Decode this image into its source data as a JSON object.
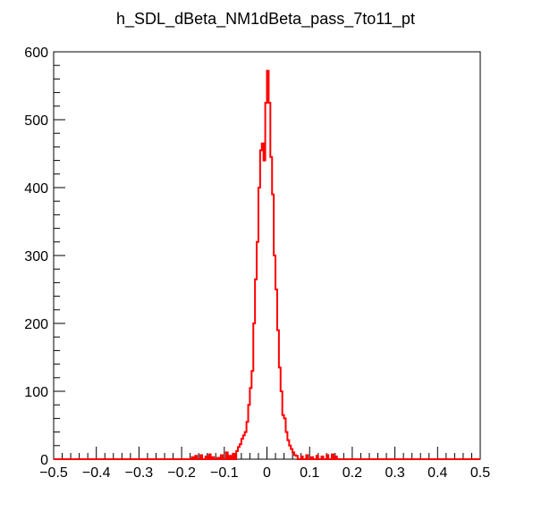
{
  "chart_data": {
    "type": "bar",
    "style": "step-histogram",
    "title": "h_SDL_dBeta_NM1dBeta_pass_7to11_pt",
    "xlabel": "",
    "ylabel": "",
    "xlim": [
      -0.5,
      0.5
    ],
    "ylim": [
      0,
      600
    ],
    "x_ticks": [
      -0.5,
      -0.4,
      -0.3,
      -0.2,
      -0.1,
      0,
      0.1,
      0.2,
      0.3,
      0.4,
      0.5
    ],
    "x_tick_labels": [
      "−0.5",
      "−0.4",
      "−0.3",
      "−0.2",
      "−0.1",
      "0",
      "0.1",
      "0.2",
      "0.3",
      "0.4",
      "0.5"
    ],
    "y_ticks": [
      0,
      100,
      200,
      300,
      400,
      500,
      600
    ],
    "y_tick_labels": [
      "0",
      "100",
      "200",
      "300",
      "400",
      "500",
      "600"
    ],
    "bin_width": 0.004,
    "series": [
      {
        "color": "#ff0000",
        "points": [
          [
            -0.176,
            3
          ],
          [
            -0.168,
            5
          ],
          [
            -0.156,
            6
          ],
          [
            -0.144,
            4
          ],
          [
            -0.136,
            7
          ],
          [
            -0.128,
            3
          ],
          [
            -0.116,
            2
          ],
          [
            -0.108,
            6
          ],
          [
            -0.096,
            10
          ],
          [
            -0.088,
            5
          ],
          [
            -0.08,
            8
          ],
          [
            -0.072,
            12
          ],
          [
            -0.068,
            18
          ],
          [
            -0.064,
            22
          ],
          [
            -0.06,
            30
          ],
          [
            -0.056,
            35
          ],
          [
            -0.052,
            40
          ],
          [
            -0.048,
            55
          ],
          [
            -0.044,
            80
          ],
          [
            -0.04,
            105
          ],
          [
            -0.036,
            130
          ],
          [
            -0.032,
            200
          ],
          [
            -0.028,
            265
          ],
          [
            -0.024,
            320
          ],
          [
            -0.02,
            400
          ],
          [
            -0.016,
            455
          ],
          [
            -0.012,
            465
          ],
          [
            -0.008,
            440
          ],
          [
            -0.004,
            525
          ],
          [
            0.0,
            572
          ],
          [
            0.004,
            525
          ],
          [
            0.008,
            445
          ],
          [
            0.012,
            390
          ],
          [
            0.016,
            300
          ],
          [
            0.02,
            250
          ],
          [
            0.024,
            190
          ],
          [
            0.028,
            135
          ],
          [
            0.032,
            100
          ],
          [
            0.036,
            65
          ],
          [
            0.04,
            60
          ],
          [
            0.044,
            40
          ],
          [
            0.048,
            28
          ],
          [
            0.052,
            20
          ],
          [
            0.056,
            15
          ],
          [
            0.06,
            10
          ],
          [
            0.064,
            6
          ],
          [
            0.068,
            5
          ],
          [
            0.08,
            4
          ],
          [
            0.092,
            6
          ],
          [
            0.104,
            3
          ],
          [
            0.116,
            5
          ],
          [
            0.128,
            4
          ],
          [
            0.14,
            6
          ],
          [
            0.152,
            7
          ],
          [
            0.16,
            4
          ]
        ]
      }
    ]
  }
}
